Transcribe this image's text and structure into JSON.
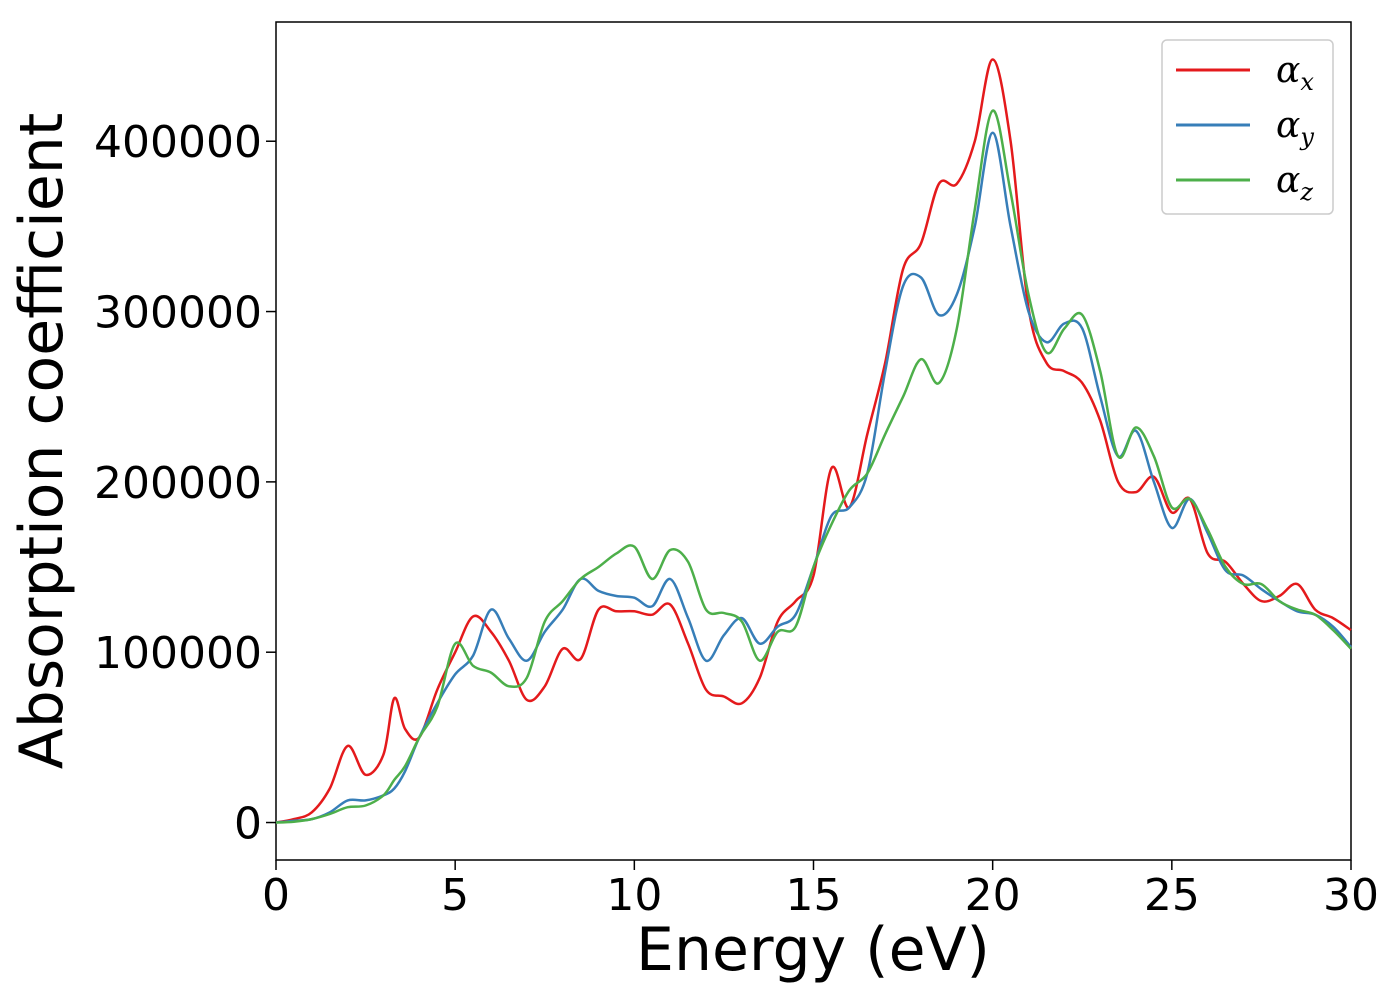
{
  "chart_data": {
    "type": "line",
    "xlabel": "Energy (eV)",
    "ylabel": "Absorption coefficient",
    "xlim": [
      0,
      30
    ],
    "ylim": [
      -22000,
      470000
    ],
    "x_ticks": [
      0,
      5,
      10,
      15,
      20,
      25,
      30
    ],
    "y_ticks": [
      0,
      100000,
      200000,
      300000,
      400000
    ],
    "grid": false,
    "legend_position": "top-right",
    "x": [
      0,
      0.5,
      1,
      1.5,
      2,
      2.5,
      3,
      3.3,
      3.6,
      4,
      4.5,
      5,
      5.5,
      6,
      6.5,
      7,
      7.5,
      8,
      8.5,
      9,
      9.5,
      10,
      10.5,
      11,
      11.5,
      12,
      12.5,
      13,
      13.5,
      14,
      14.5,
      15,
      15.5,
      16,
      16.5,
      17,
      17.5,
      18,
      18.5,
      19,
      19.5,
      20,
      20.5,
      21,
      21.5,
      22,
      22.5,
      23,
      23.5,
      24,
      24.5,
      25,
      25.5,
      26,
      26.5,
      27,
      27.5,
      28,
      28.5,
      29,
      29.5,
      30
    ],
    "series": [
      {
        "name": "α",
        "subscript": "x",
        "color": "#e41a1c",
        "values": [
          0,
          2000,
          6000,
          20000,
          45000,
          28000,
          40000,
          73000,
          55000,
          50000,
          78000,
          100000,
          121000,
          112000,
          95000,
          72000,
          80000,
          102000,
          96000,
          125000,
          124000,
          124000,
          122000,
          128000,
          105000,
          78000,
          74000,
          70000,
          85000,
          118000,
          130000,
          145000,
          208000,
          185000,
          228000,
          270000,
          325000,
          340000,
          375000,
          375000,
          400000,
          448000,
          400000,
          302000,
          270000,
          265000,
          258000,
          236000,
          200000,
          194000,
          203000,
          182000,
          190000,
          158000,
          153000,
          140000,
          130000,
          133000,
          140000,
          125000,
          120000,
          113000
        ]
      },
      {
        "name": "α",
        "subscript": "y",
        "color": "#377eb8",
        "values": [
          0,
          1000,
          2000,
          6000,
          13000,
          13000,
          16000,
          20000,
          30000,
          50000,
          70000,
          87000,
          98000,
          125000,
          108000,
          95000,
          112000,
          125000,
          143000,
          136000,
          133000,
          132000,
          127000,
          143000,
          120000,
          95000,
          110000,
          120000,
          105000,
          115000,
          122000,
          150000,
          180000,
          185000,
          205000,
          265000,
          315000,
          320000,
          298000,
          310000,
          350000,
          405000,
          350000,
          300000,
          282000,
          293000,
          290000,
          250000,
          215000,
          230000,
          200000,
          173000,
          190000,
          170000,
          148000,
          145000,
          137000,
          130000,
          124000,
          122000,
          115000,
          103000
        ]
      },
      {
        "name": "α",
        "subscript": "z",
        "color": "#4daf4a",
        "values": [
          0,
          500,
          2000,
          5000,
          9000,
          10000,
          16000,
          25000,
          33000,
          50000,
          68000,
          105000,
          92000,
          88000,
          80000,
          85000,
          118000,
          130000,
          143000,
          150000,
          158000,
          162000,
          143000,
          160000,
          153000,
          125000,
          123000,
          118000,
          95000,
          112000,
          115000,
          150000,
          175000,
          195000,
          205000,
          228000,
          250000,
          272000,
          258000,
          290000,
          360000,
          418000,
          370000,
          310000,
          276000,
          290000,
          298000,
          265000,
          215000,
          232000,
          215000,
          185000,
          190000,
          172000,
          150000,
          140000,
          140000,
          130000,
          125000,
          122000,
          113000,
          102000
        ]
      }
    ]
  }
}
